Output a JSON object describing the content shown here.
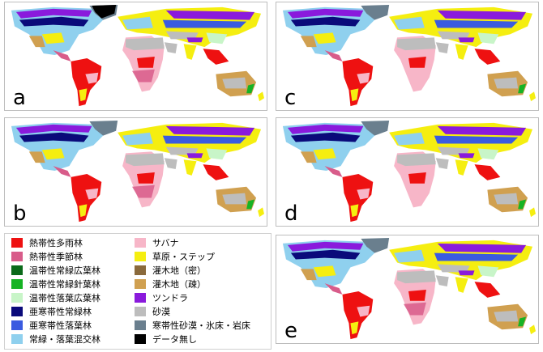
{
  "panels": [
    {
      "id": "a",
      "label": "a"
    },
    {
      "id": "b",
      "label": "b"
    },
    {
      "id": "c",
      "label": "c"
    },
    {
      "id": "d",
      "label": "d"
    },
    {
      "id": "e",
      "label": "e"
    }
  ],
  "legend": {
    "items": [
      {
        "label": "熱帯性多雨林",
        "color": "#ee1111"
      },
      {
        "label": "熱帯性季節林",
        "color": "#d85c8a"
      },
      {
        "label": "温帯性常緑広葉林",
        "color": "#0b6a1a"
      },
      {
        "label": "温帯性常緑針葉林",
        "color": "#16b324"
      },
      {
        "label": "温帯性落葉広葉林",
        "color": "#c8f5c8"
      },
      {
        "label": "亜寒帯性常緑林",
        "color": "#0a0a7a"
      },
      {
        "label": "亜寒帯性落葉林",
        "color": "#3a5be0"
      },
      {
        "label": "常緑・落葉混交林",
        "color": "#8fd0ee"
      },
      {
        "label": "サバナ",
        "color": "#f7b6c8"
      },
      {
        "label": "草原・ステップ",
        "color": "#f5ee10"
      },
      {
        "label": "灌木地（密）",
        "color": "#8a6a3c"
      },
      {
        "label": "灌木地（疎）",
        "color": "#d0a050"
      },
      {
        "label": "ツンドラ",
        "color": "#8a1adc"
      },
      {
        "label": "砂漠",
        "color": "#bdbdbd"
      },
      {
        "label": "寒帯性砂漠・氷床・岩床",
        "color": "#6a7f8e"
      },
      {
        "label": "データ無し",
        "color": "#000000"
      }
    ]
  },
  "colors": {
    "tropical_rainforest": "#ee1111",
    "tropical_seasonal": "#d85c8a",
    "temperate_broadleaf_evergreen": "#0b6a1a",
    "temperate_needleleaf_evergreen": "#16b324",
    "temperate_deciduous": "#c8f5c8",
    "boreal_evergreen": "#0a0a7a",
    "boreal_deciduous": "#3a5be0",
    "mixed_forest": "#8fd0ee",
    "savanna": "#f7b6c8",
    "grassland": "#f5ee10",
    "dense_shrubland": "#8a6a3c",
    "open_shrubland": "#d0a050",
    "tundra": "#8a1adc",
    "desert": "#bdbdbd",
    "polar_desert": "#6a7f8e",
    "no_data": "#000000"
  }
}
